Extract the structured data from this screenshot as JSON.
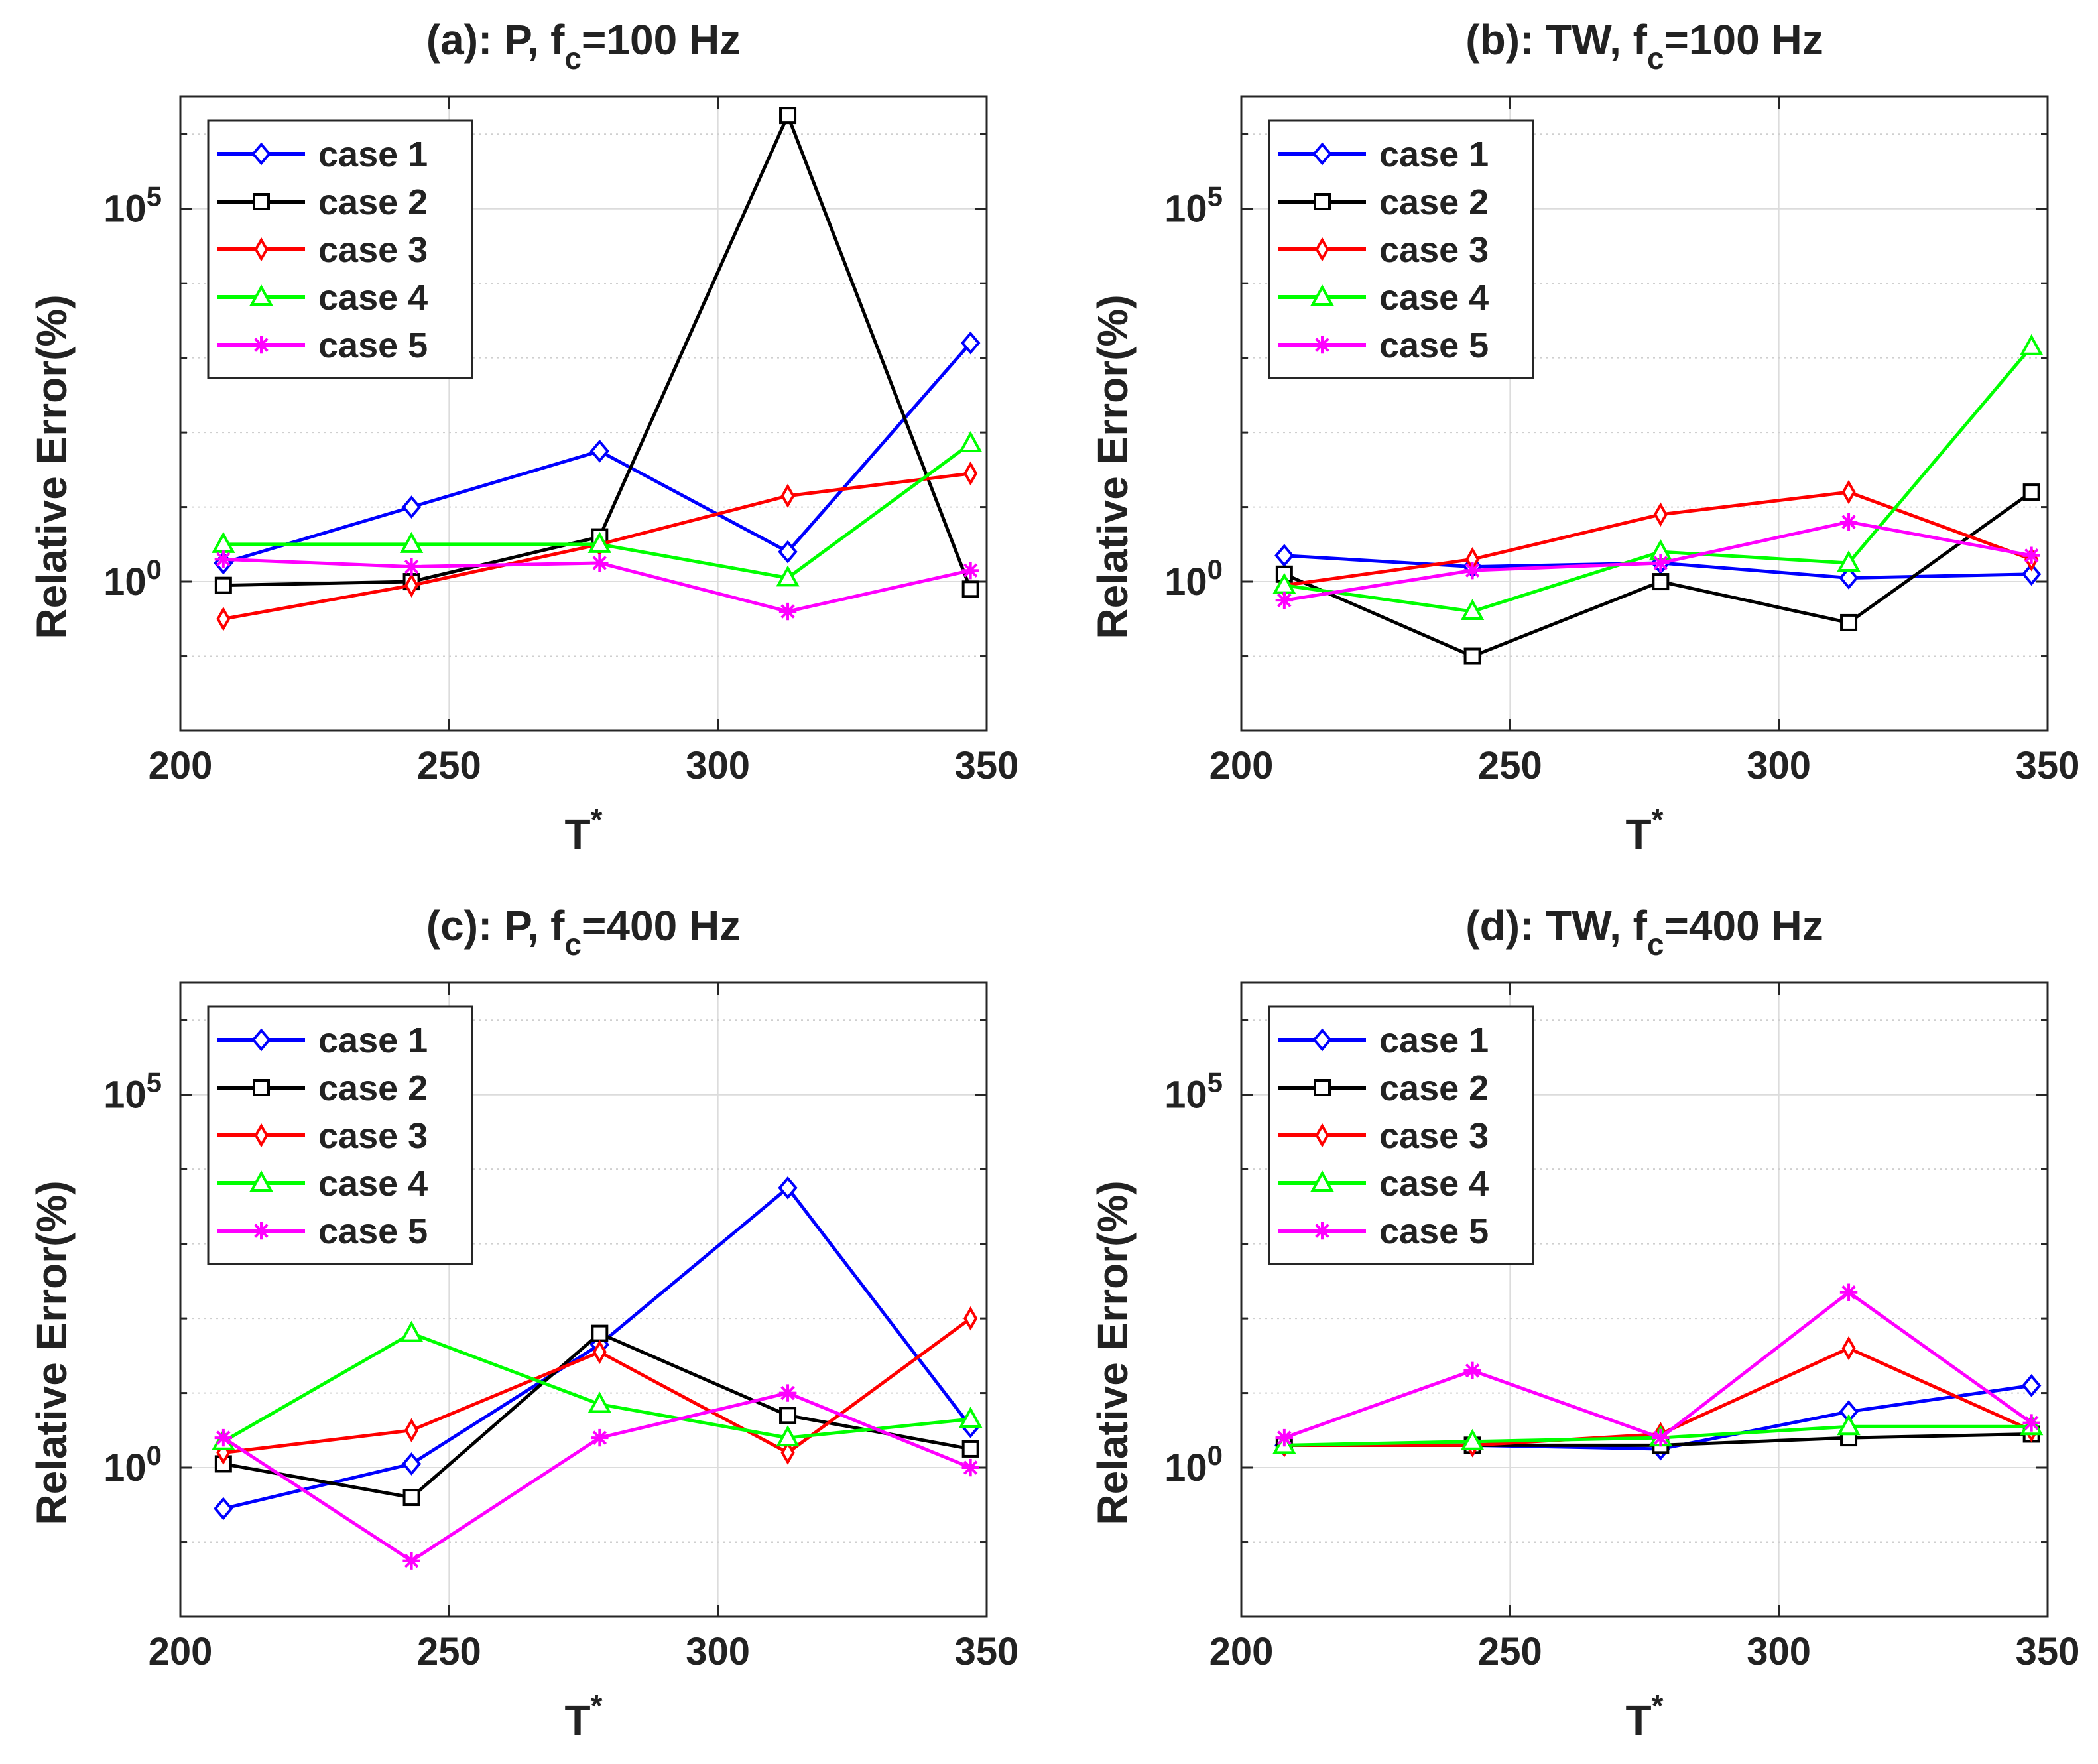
{
  "colors": {
    "case 1": "#0000ff",
    "case 2": "#000000",
    "case 3": "#ff0000",
    "case 4": "#00ff00",
    "case 5": "#ff00ff"
  },
  "markers": {
    "case 1": "diamond",
    "case 2": "square",
    "case 3": "thin-diamond",
    "case 4": "triangle",
    "case 5": "asterisk"
  },
  "chart_data": [
    {
      "type": "line",
      "panel": "a",
      "title": "(a): P, f",
      "title_sub": "c",
      "title_suffix": "=100 Hz",
      "xlabel": "T",
      "xlabel_sup": "*",
      "ylabel": "Relative Error(%)",
      "yscale": "log",
      "xlim": [
        200,
        350
      ],
      "ylim_log10": [
        -2,
        6.5
      ],
      "xticks": [
        "200",
        "250",
        "300",
        "350"
      ],
      "yticks": [
        {
          "base": "10",
          "exp": "0"
        },
        {
          "base": "10",
          "exp": "5"
        }
      ],
      "legend_location": "top-left",
      "x": [
        208,
        243,
        278,
        313,
        347
      ],
      "series": [
        {
          "name": "case 1",
          "log10_values": [
            0.25,
            1.0,
            1.75,
            0.4,
            3.2
          ]
        },
        {
          "name": "case 2",
          "log10_values": [
            -0.05,
            0.0,
            0.6,
            6.25,
            -0.1
          ]
        },
        {
          "name": "case 3",
          "log10_values": [
            -0.5,
            -0.05,
            0.5,
            1.15,
            1.45
          ]
        },
        {
          "name": "case 4",
          "log10_values": [
            0.5,
            0.5,
            0.5,
            0.05,
            1.85
          ]
        },
        {
          "name": "case 5",
          "log10_values": [
            0.3,
            0.2,
            0.25,
            -0.4,
            0.15
          ]
        }
      ]
    },
    {
      "type": "line",
      "panel": "b",
      "title": "(b): TW, f",
      "title_sub": "c",
      "title_suffix": "=100 Hz",
      "xlabel": "T",
      "xlabel_sup": "*",
      "ylabel": "Relative Error(%)",
      "yscale": "log",
      "xlim": [
        200,
        350
      ],
      "ylim_log10": [
        -2,
        6.5
      ],
      "xticks": [
        "200",
        "250",
        "300",
        "350"
      ],
      "yticks": [
        {
          "base": "10",
          "exp": "0"
        },
        {
          "base": "10",
          "exp": "5"
        }
      ],
      "legend_location": "top-left",
      "x": [
        208,
        243,
        278,
        313,
        347
      ],
      "series": [
        {
          "name": "case 1",
          "log10_values": [
            0.35,
            0.2,
            0.25,
            0.05,
            0.1
          ]
        },
        {
          "name": "case 2",
          "log10_values": [
            0.1,
            -1.0,
            0.0,
            -0.55,
            1.2
          ]
        },
        {
          "name": "case 3",
          "log10_values": [
            -0.05,
            0.3,
            0.9,
            1.2,
            0.3
          ]
        },
        {
          "name": "case 4",
          "log10_values": [
            -0.05,
            -0.4,
            0.4,
            0.25,
            3.15
          ]
        },
        {
          "name": "case 5",
          "log10_values": [
            -0.25,
            0.15,
            0.25,
            0.8,
            0.35
          ]
        }
      ]
    },
    {
      "type": "line",
      "panel": "c",
      "title": "(c): P, f",
      "title_sub": "c",
      "title_suffix": "=400 Hz",
      "xlabel": "T",
      "xlabel_sup": "*",
      "ylabel": "Relative Error(%)",
      "yscale": "log",
      "xlim": [
        200,
        350
      ],
      "ylim_log10": [
        -2,
        6.5
      ],
      "xticks": [
        "200",
        "250",
        "300",
        "350"
      ],
      "yticks": [
        {
          "base": "10",
          "exp": "0"
        },
        {
          "base": "10",
          "exp": "5"
        }
      ],
      "legend_location": "top-left",
      "x": [
        208,
        243,
        278,
        313,
        347
      ],
      "series": [
        {
          "name": "case 1",
          "log10_values": [
            -0.55,
            0.05,
            1.65,
            3.75,
            0.55
          ]
        },
        {
          "name": "case 2",
          "log10_values": [
            0.05,
            -0.4,
            1.8,
            0.7,
            0.25
          ]
        },
        {
          "name": "case 3",
          "log10_values": [
            0.2,
            0.5,
            1.55,
            0.2,
            2.0
          ]
        },
        {
          "name": "case 4",
          "log10_values": [
            0.35,
            1.8,
            0.85,
            0.4,
            0.65
          ]
        },
        {
          "name": "case 5",
          "log10_values": [
            0.4,
            -1.25,
            0.4,
            1.0,
            0.0
          ]
        }
      ]
    },
    {
      "type": "line",
      "panel": "d",
      "title": "(d): TW, f",
      "title_sub": "c",
      "title_suffix": "=400 Hz",
      "xlabel": "T",
      "xlabel_sup": "*",
      "ylabel": "Relative Error(%)",
      "yscale": "log",
      "xlim": [
        200,
        350
      ],
      "ylim_log10": [
        -2,
        6.5
      ],
      "xticks": [
        "200",
        "250",
        "300",
        "350"
      ],
      "yticks": [
        {
          "base": "10",
          "exp": "0"
        },
        {
          "base": "10",
          "exp": "5"
        }
      ],
      "legend_location": "top-left",
      "x": [
        208,
        243,
        278,
        313,
        347
      ],
      "series": [
        {
          "name": "case 1",
          "log10_values": [
            0.3,
            0.3,
            0.25,
            0.75,
            1.1
          ]
        },
        {
          "name": "case 2",
          "log10_values": [
            0.3,
            0.3,
            0.3,
            0.4,
            0.45
          ]
        },
        {
          "name": "case 3",
          "log10_values": [
            0.3,
            0.3,
            0.45,
            1.6,
            0.5
          ]
        },
        {
          "name": "case 4",
          "log10_values": [
            0.3,
            0.35,
            0.4,
            0.55,
            0.55
          ]
        },
        {
          "name": "case 5",
          "log10_values": [
            0.4,
            1.3,
            0.4,
            2.35,
            0.6
          ]
        }
      ]
    }
  ]
}
